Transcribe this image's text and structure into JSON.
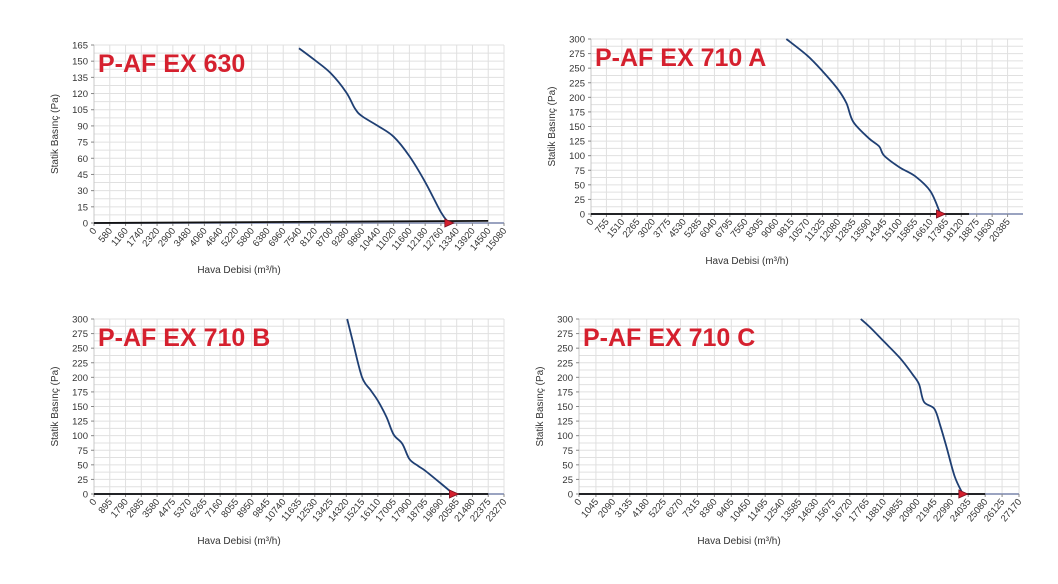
{
  "colors": {
    "curve": "#1f3f73",
    "title": "#d5202e",
    "axis": "#555555",
    "grid": "#e0e0e0",
    "marker": "#d5202e"
  },
  "chart_data": [
    {
      "type": "line",
      "title": "P-AF EX 630",
      "xlabel": "Hava Debisi (m³/h)",
      "ylabel": "Statik Basınç (Pa)",
      "xlim": [
        0,
        15080
      ],
      "ylim": [
        0,
        165
      ],
      "x_ticks": [
        "0",
        "580",
        "1160",
        "1740",
        "2320",
        "2900",
        "3480",
        "4060",
        "4640",
        "5220",
        "5800",
        "6380",
        "6960",
        "7540",
        "8120",
        "8700",
        "9280",
        "9860",
        "10440",
        "11020",
        "11600",
        "12180",
        "12760",
        "13340",
        "13920",
        "14500",
        "15080"
      ],
      "y_ticks": [
        "0",
        "15",
        "30",
        "45",
        "60",
        "75",
        "90",
        "105",
        "120",
        "135",
        "150",
        "165"
      ],
      "series": [
        {
          "x": [
            7540,
            8120,
            8700,
            9280,
            9600,
            9860,
            10440,
            11020,
            11600,
            12180,
            12760,
            13050
          ],
          "y": [
            162,
            151,
            139,
            121,
            106,
            99,
            90,
            80,
            62,
            38,
            10,
            0
          ]
        }
      ],
      "system_line": {
        "x": [
          0,
          14500
        ],
        "y": [
          0,
          2
        ]
      },
      "operating_point": {
        "x": 13050,
        "y": 0
      }
    },
    {
      "type": "line",
      "title": "P-AF EX 710 A",
      "xlabel": "Hava Debisi (m³/h)",
      "ylabel": "Statik Basınç (Pa)",
      "xlim": [
        0,
        21140
      ],
      "ylim": [
        0,
        300
      ],
      "x_ticks": [
        "0",
        "755",
        "1510",
        "2265",
        "3020",
        "3775",
        "4530",
        "5285",
        "6040",
        "6795",
        "7550",
        "8305",
        "9060",
        "9815",
        "10570",
        "11325",
        "12080",
        "12835",
        "13590",
        "14345",
        "15100",
        "15855",
        "16610",
        "17365",
        "18120",
        "18875",
        "19630",
        "20385"
      ],
      "y_ticks": [
        "0",
        "25",
        "50",
        "75",
        "100",
        "125",
        "150",
        "175",
        "200",
        "225",
        "250",
        "275",
        "300"
      ],
      "series": [
        {
          "x": [
            9560,
            10570,
            11325,
            12080,
            12500,
            12835,
            13590,
            14100,
            14345,
            15100,
            15855,
            16610,
            17100
          ],
          "y": [
            300,
            272,
            245,
            214,
            190,
            158,
            130,
            116,
            100,
            80,
            65,
            39,
            0
          ]
        }
      ],
      "system_line": {
        "x": [
          0,
          18500
        ],
        "y": [
          0,
          0
        ]
      },
      "operating_point": {
        "x": 17100,
        "y": 0
      }
    },
    {
      "type": "line",
      "title": "P-AF EX 710 B",
      "xlabel": "Hava Debisi (m³/h)",
      "ylabel": "Statik Basınç (Pa)",
      "xlim": [
        0,
        23270
      ],
      "ylim": [
        0,
        300
      ],
      "x_ticks": [
        "0",
        "895",
        "1790",
        "2685",
        "3580",
        "4475",
        "5370",
        "6265",
        "7160",
        "8055",
        "8950",
        "9845",
        "10740",
        "11635",
        "12530",
        "13425",
        "14320",
        "15215",
        "16110",
        "17005",
        "17900",
        "18795",
        "19690",
        "20585",
        "21480",
        "22375",
        "23270"
      ],
      "y_ticks": [
        "0",
        "25",
        "50",
        "75",
        "100",
        "125",
        "150",
        "175",
        "200",
        "225",
        "250",
        "275",
        "300"
      ],
      "series": [
        {
          "x": [
            14370,
            14700,
            15215,
            15700,
            16110,
            16600,
            17005,
            17500,
            17900,
            18400,
            18795,
            19690,
            20400
          ],
          "y": [
            300,
            260,
            200,
            178,
            160,
            132,
            102,
            86,
            60,
            48,
            40,
            18,
            0
          ]
        }
      ],
      "system_line": {
        "x": [
          0,
          22375
        ],
        "y": [
          0,
          0
        ]
      },
      "operating_point": {
        "x": 20400,
        "y": 0
      }
    },
    {
      "type": "line",
      "title": "P-AF EX 710 C",
      "xlabel": "Hava Debisi (m³/h)",
      "ylabel": "Statik Basınç (Pa)",
      "xlim": [
        0,
        27170
      ],
      "ylim": [
        0,
        300
      ],
      "x_ticks": [
        "0",
        "1045",
        "2090",
        "3135",
        "4180",
        "5225",
        "6270",
        "7315",
        "8360",
        "9405",
        "10450",
        "11495",
        "12540",
        "13585",
        "14630",
        "15675",
        "16720",
        "17765",
        "18810",
        "19855",
        "20900",
        "21945",
        "22990",
        "24035",
        "25080",
        "26125",
        "27170"
      ],
      "y_ticks": [
        "0",
        "25",
        "50",
        "75",
        "100",
        "125",
        "150",
        "175",
        "200",
        "225",
        "250",
        "275",
        "300"
      ],
      "series": [
        {
          "x": [
            17400,
            18000,
            18810,
            19855,
            20600,
            21000,
            21300,
            21945,
            22300,
            22700,
            23200,
            23700
          ],
          "y": [
            300,
            285,
            262,
            232,
            205,
            188,
            158,
            146,
            118,
            80,
            30,
            0
          ]
        }
      ],
      "system_line": {
        "x": [
          0,
          25080
        ],
        "y": [
          0,
          0
        ]
      },
      "operating_point": {
        "x": 23700,
        "y": 0
      }
    }
  ]
}
